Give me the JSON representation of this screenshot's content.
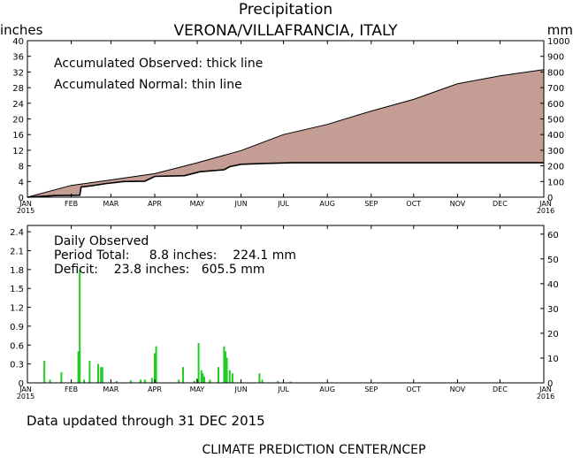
{
  "header": {
    "title": "Precipitation",
    "subtitle": "VERONA/VILLAFRANCIA, ITALY",
    "left_unit": "inches",
    "right_unit": "mm"
  },
  "annotations": {
    "observed_note": "Accumulated Observed: thick line",
    "normal_note": "Accumulated Normal: thin line",
    "daily_title": "Daily Observed",
    "period_total": "Period Total:     8.8 inches:    224.1 mm",
    "deficit": "Deficit:    23.8 inches:   605.5 mm"
  },
  "footer": {
    "updated": "Data updated through 31 DEC 2015",
    "credit": "CLIMATE PREDICTION CENTER/NCEP"
  },
  "colors": {
    "deficit_fill": "#c49e94",
    "daily_bar": "#22cc22",
    "line": "#000000"
  },
  "chart_data": [
    {
      "type": "area",
      "title": "Precipitation",
      "subtitle": "VERONA/VILLAFRANCIA, ITALY",
      "ylabel_left": "inches",
      "ylabel_right": "mm",
      "x_tick_labels": [
        "JAN",
        "FEB",
        "MAR",
        "APR",
        "MAY",
        "JUN",
        "JUL",
        "AUG",
        "SEP",
        "OCT",
        "NOV",
        "DEC",
        "JAN"
      ],
      "x_year_start": "2015",
      "x_year_end": "2016",
      "xlim": [
        "2015-01-01",
        "2016-01-01"
      ],
      "ylim_left": [
        0,
        40
      ],
      "yticks_left": [
        "0",
        "4",
        "8",
        "12",
        "16",
        "20",
        "24",
        "28",
        "32",
        "36",
        "40"
      ],
      "ylim_right": [
        0,
        1000
      ],
      "yticks_right": [
        "0",
        "100",
        "200",
        "300",
        "400",
        "500",
        "600",
        "700",
        "800",
        "900",
        "1000"
      ],
      "series": [
        {
          "name": "Accumulated Normal",
          "style": "thin line",
          "points": [
            [
              "2015-01-01",
              0.0
            ],
            [
              "2015-02-01",
              3.0
            ],
            [
              "2015-03-01",
              4.4
            ],
            [
              "2015-04-01",
              6.0
            ],
            [
              "2015-05-01",
              8.8
            ],
            [
              "2015-06-01",
              11.9
            ],
            [
              "2015-07-01",
              16.0
            ],
            [
              "2015-08-01",
              18.6
            ],
            [
              "2015-09-01",
              22.0
            ],
            [
              "2015-10-01",
              25.0
            ],
            [
              "2015-11-01",
              29.0
            ],
            [
              "2015-12-01",
              31.0
            ],
            [
              "2016-01-01",
              32.6
            ]
          ]
        },
        {
          "name": "Accumulated Observed",
          "style": "thick line",
          "points": [
            [
              "2015-01-01",
              0.0
            ],
            [
              "2015-01-20",
              0.4
            ],
            [
              "2015-02-07",
              0.5
            ],
            [
              "2015-02-08",
              2.6
            ],
            [
              "2015-02-15",
              2.9
            ],
            [
              "2015-02-26",
              3.5
            ],
            [
              "2015-03-10",
              4.0
            ],
            [
              "2015-03-25",
              4.1
            ],
            [
              "2015-03-28",
              4.6
            ],
            [
              "2015-04-01",
              5.3
            ],
            [
              "2015-04-22",
              5.5
            ],
            [
              "2015-05-03",
              6.5
            ],
            [
              "2015-05-20",
              7.0
            ],
            [
              "2015-05-24",
              7.8
            ],
            [
              "2015-06-01",
              8.4
            ],
            [
              "2015-06-16",
              8.6
            ],
            [
              "2015-07-07",
              8.8
            ],
            [
              "2016-01-01",
              8.8
            ]
          ]
        }
      ]
    },
    {
      "type": "bar",
      "title": "Daily Observed",
      "x_tick_labels": [
        "JAN",
        "FEB",
        "MAR",
        "APR",
        "MAY",
        "JUN",
        "JUL",
        "AUG",
        "SEP",
        "OCT",
        "NOV",
        "DEC",
        "JAN"
      ],
      "x_year_start": "2015",
      "x_year_end": "2016",
      "xlim": [
        "2015-01-01",
        "2016-01-01"
      ],
      "ylim_left": [
        0,
        2.5
      ],
      "yticks_left": [
        "0",
        "0.3",
        "0.6",
        "0.9",
        "1.2",
        "1.5",
        "1.8",
        "2.1",
        "2.4"
      ],
      "ylim_right": [
        0,
        63.5
      ],
      "yticks_right": [
        "0",
        "10",
        "20",
        "30",
        "40",
        "50",
        "60"
      ],
      "unit_left": "inches",
      "unit_right": "mm",
      "bars": [
        [
          "2015-01-13",
          0.35
        ],
        [
          "2015-01-17",
          0.05
        ],
        [
          "2015-01-25",
          0.17
        ],
        [
          "2015-02-06",
          0.5
        ],
        [
          "2015-02-07",
          1.8
        ],
        [
          "2015-02-10",
          0.05
        ],
        [
          "2015-02-14",
          0.35
        ],
        [
          "2015-02-20",
          0.3
        ],
        [
          "2015-02-22",
          0.25
        ],
        [
          "2015-02-23",
          0.25
        ],
        [
          "2015-03-05",
          0.03
        ],
        [
          "2015-03-15",
          0.04
        ],
        [
          "2015-03-22",
          0.05
        ],
        [
          "2015-03-25",
          0.05
        ],
        [
          "2015-03-30",
          0.08
        ],
        [
          "2015-04-01",
          0.47
        ],
        [
          "2015-04-02",
          0.58
        ],
        [
          "2015-04-18",
          0.05
        ],
        [
          "2015-04-21",
          0.25
        ],
        [
          "2015-04-29",
          0.03
        ],
        [
          "2015-05-01",
          0.07
        ],
        [
          "2015-05-02",
          0.63
        ],
        [
          "2015-05-04",
          0.2
        ],
        [
          "2015-05-05",
          0.15
        ],
        [
          "2015-05-06",
          0.1
        ],
        [
          "2015-05-10",
          0.05
        ],
        [
          "2015-05-16",
          0.25
        ],
        [
          "2015-05-20",
          0.58
        ],
        [
          "2015-05-21",
          0.5
        ],
        [
          "2015-05-22",
          0.4
        ],
        [
          "2015-05-24",
          0.2
        ],
        [
          "2015-05-26",
          0.15
        ],
        [
          "2015-06-14",
          0.15
        ],
        [
          "2015-06-16",
          0.05
        ],
        [
          "2015-06-27",
          0.03
        ],
        [
          "2015-07-06",
          0.02
        ]
      ]
    }
  ]
}
